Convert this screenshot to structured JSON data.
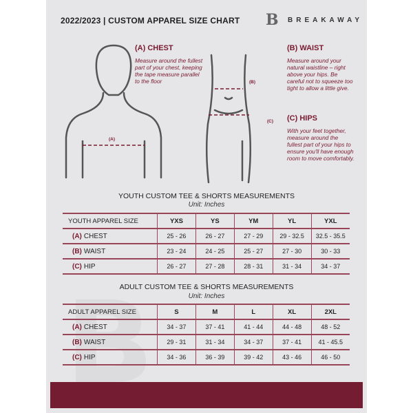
{
  "header": {
    "title": "2022/2023  |  CUSTOM APPAREL SIZE CHART",
    "brand": "BREAKAWAY",
    "logo_letter": "B"
  },
  "guide": {
    "chest": {
      "heading": "(A) CHEST",
      "text": "Measure around the fullest part of your chest, keeping the tape measure parallel to the floor",
      "marker": "(A)"
    },
    "waist": {
      "heading": "(B) WAIST",
      "text": "Measure around your natural waistline – right above your hips. Be careful not to squeeze too tight to allow a little give.",
      "marker": "(B)"
    },
    "hips": {
      "heading": "(C) HIPS",
      "text": "With your feet together, measure around the fullest part of your hips to ensure you'll have enough room to move comfortably.",
      "marker": "(C)"
    }
  },
  "youth": {
    "title": "YOUTH CUSTOM TEE & SHORTS MEASUREMENTS",
    "unit": "Unit: Inches",
    "header": [
      "YOUTH APPAREL SIZE",
      "YXS",
      "YS",
      "YM",
      "YL",
      "YXL"
    ],
    "rows": [
      {
        "letter": "(A)",
        "label": "CHEST",
        "values": [
          "25 - 26",
          "26 - 27",
          "27 - 29",
          "29 - 32.5",
          "32.5 - 35.5"
        ]
      },
      {
        "letter": "(B)",
        "label": "WAIST",
        "values": [
          "23 - 24",
          "24 - 25",
          "25 - 27",
          "27 - 30",
          "30 - 33"
        ]
      },
      {
        "letter": "(C)",
        "label": "HIP",
        "values": [
          "26 - 27",
          "27 - 28",
          "28 - 31",
          "31 - 34",
          "34 - 37"
        ]
      }
    ]
  },
  "adult": {
    "title": "ADULT CUSTOM TEE & SHORTS MEASUREMENTS",
    "unit": "Unit: Inches",
    "header": [
      "ADULT APPAREL SIZE",
      "S",
      "M",
      "L",
      "XL",
      "2XL"
    ],
    "rows": [
      {
        "letter": "(A)",
        "label": "CHEST",
        "values": [
          "34 - 37",
          "37 - 41",
          "41 - 44",
          "44 - 48",
          "48 - 52"
        ]
      },
      {
        "letter": "(B)",
        "label": "WAIST",
        "values": [
          "29 - 31",
          "31 - 34",
          "34 - 37",
          "37 - 41",
          "41 - 45.5"
        ]
      },
      {
        "letter": "(C)",
        "label": "HIP",
        "values": [
          "34 - 36",
          "36 - 39",
          "39 - 42",
          "43 - 46",
          "46 - 50"
        ]
      }
    ]
  },
  "colors": {
    "accent": "#741c32",
    "page": "#e6e6e8"
  }
}
